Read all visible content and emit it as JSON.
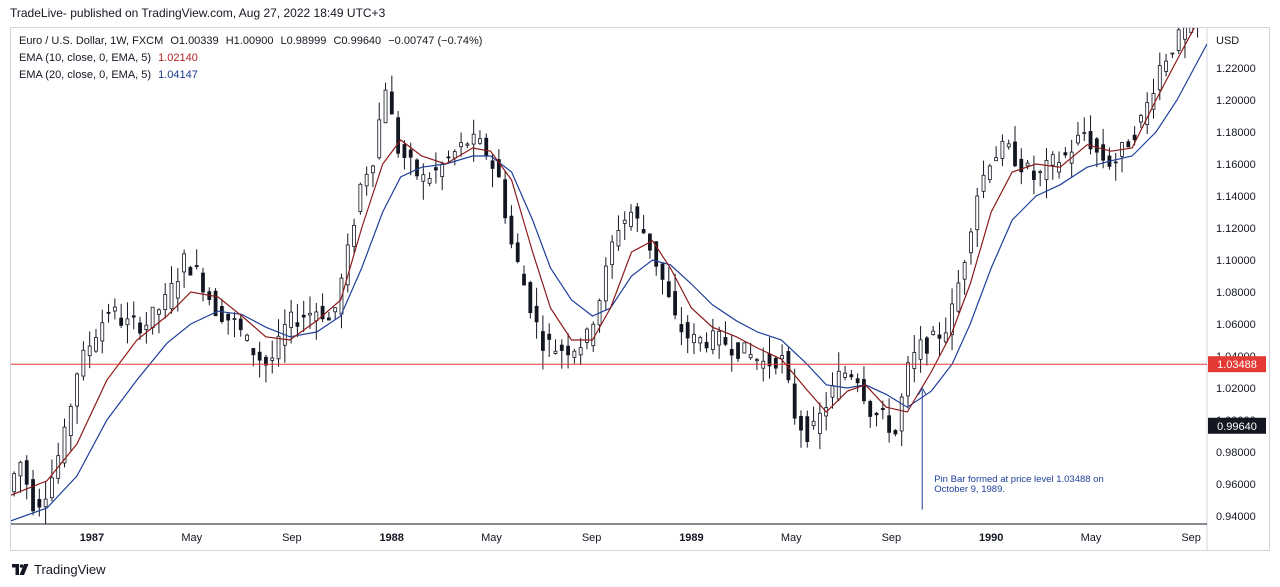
{
  "header": {
    "publish_line": "TradeLive- published on TradingView.com, Aug 27, 2022 18:49 UTC+3"
  },
  "legend": {
    "symbol": "Euro / U.S. Dollar, 1W, FXCM",
    "open_label": "O",
    "open": "1.00339",
    "high_label": "H",
    "high": "1.00900",
    "low_label": "L",
    "low": "0.98999",
    "close_label": "C",
    "close": "0.99640",
    "change": "−0.00747 (−0.74%)",
    "ema10_label": "EMA (10, close, 0, EMA, 5)",
    "ema10_value": "1.02140",
    "ema20_label": "EMA (20, close, 0, EMA, 5)",
    "ema20_value": "1.04147"
  },
  "footer": {
    "brand": "TradingView"
  },
  "colors": {
    "ema10": "#8b1a1a",
    "ema20": "#1f3f9a",
    "candle": "#131722",
    "hline": "#e53935"
  },
  "chart_data": {
    "type": "candlestick",
    "currency_label": "USD",
    "y_ticks": [
      "0.94000",
      "0.96000",
      "0.98000",
      "1.00000",
      "1.02000",
      "1.04000",
      "1.06000",
      "1.08000",
      "1.10000",
      "1.12000",
      "1.14000",
      "1.16000",
      "1.18000",
      "1.20000",
      "1.22000"
    ],
    "ylim": [
      0.935,
      1.245
    ],
    "x_ticks": [
      {
        "label": "1987",
        "t": 0.0
      },
      {
        "label": "May",
        "t": 0.333
      },
      {
        "label": "Sep",
        "t": 0.667
      },
      {
        "label": "1988",
        "t": 1.0
      },
      {
        "label": "May",
        "t": 1.333
      },
      {
        "label": "Sep",
        "t": 1.667
      },
      {
        "label": "1989",
        "t": 2.0
      },
      {
        "label": "May",
        "t": 2.333
      },
      {
        "label": "Sep",
        "t": 2.667
      },
      {
        "label": "1990",
        "t": 3.0
      },
      {
        "label": "May",
        "t": 3.333
      },
      {
        "label": "Sep",
        "t": 3.667
      },
      {
        "label": "1991",
        "t": 4.0
      }
    ],
    "xlim": [
      -0.27,
      3.72
    ],
    "horizontal_level": {
      "value": 1.03488,
      "label": "1.03488"
    },
    "last_price": {
      "value": 0.9964,
      "label": "0.99640"
    },
    "annotation": {
      "text_line1": "Pin Bar formed at price level 1.03488 on",
      "text_line2": "October 9, 1989.",
      "arrow_t": 2.77,
      "arrow_from": 0.944,
      "arrow_to": 1.02
    },
    "price_path": [
      [
        -0.27,
        0.95
      ],
      [
        -0.22,
        0.975
      ],
      [
        -0.17,
        0.945
      ],
      [
        -0.12,
        0.96
      ],
      [
        -0.07,
        0.99
      ],
      [
        -0.03,
        1.03
      ],
      [
        0.02,
        1.05
      ],
      [
        0.08,
        1.07
      ],
      [
        0.13,
        1.06
      ],
      [
        0.2,
        1.06
      ],
      [
        0.27,
        1.075
      ],
      [
        0.33,
        1.1
      ],
      [
        0.38,
        1.09
      ],
      [
        0.43,
        1.07
      ],
      [
        0.5,
        1.06
      ],
      [
        0.55,
        1.045
      ],
      [
        0.6,
        1.035
      ],
      [
        0.63,
        1.04
      ],
      [
        0.67,
        1.06
      ],
      [
        0.72,
        1.065
      ],
      [
        0.78,
        1.07
      ],
      [
        0.82,
        1.06
      ],
      [
        0.87,
        1.1
      ],
      [
        0.92,
        1.15
      ],
      [
        0.96,
        1.165
      ],
      [
        1.0,
        1.21
      ],
      [
        1.04,
        1.17
      ],
      [
        1.08,
        1.16
      ],
      [
        1.12,
        1.15
      ],
      [
        1.17,
        1.155
      ],
      [
        1.22,
        1.165
      ],
      [
        1.28,
        1.175
      ],
      [
        1.33,
        1.17
      ],
      [
        1.38,
        1.15
      ],
      [
        1.42,
        1.11
      ],
      [
        1.47,
        1.08
      ],
      [
        1.52,
        1.05
      ],
      [
        1.57,
        1.045
      ],
      [
        1.62,
        1.045
      ],
      [
        1.67,
        1.05
      ],
      [
        1.72,
        1.08
      ],
      [
        1.77,
        1.12
      ],
      [
        1.82,
        1.13
      ],
      [
        1.87,
        1.115
      ],
      [
        1.92,
        1.09
      ],
      [
        1.97,
        1.06
      ],
      [
        2.02,
        1.05
      ],
      [
        2.07,
        1.05
      ],
      [
        2.12,
        1.05
      ],
      [
        2.17,
        1.045
      ],
      [
        2.22,
        1.04
      ],
      [
        2.27,
        1.035
      ],
      [
        2.32,
        1.04
      ],
      [
        2.37,
        1.0
      ],
      [
        2.42,
        0.99
      ],
      [
        2.47,
        1.01
      ],
      [
        2.52,
        1.03
      ],
      [
        2.57,
        1.03
      ],
      [
        2.62,
        1.005
      ],
      [
        2.67,
        1.0
      ],
      [
        2.7,
        0.99
      ],
      [
        2.74,
        1.03
      ],
      [
        2.78,
        1.045
      ],
      [
        2.83,
        1.05
      ],
      [
        2.88,
        1.06
      ],
      [
        2.93,
        1.1
      ],
      [
        2.97,
        1.14
      ],
      [
        3.02,
        1.165
      ],
      [
        3.07,
        1.17
      ],
      [
        3.12,
        1.16
      ],
      [
        3.17,
        1.15
      ],
      [
        3.22,
        1.16
      ],
      [
        3.27,
        1.165
      ],
      [
        3.33,
        1.18
      ],
      [
        3.38,
        1.165
      ],
      [
        3.43,
        1.16
      ],
      [
        3.48,
        1.175
      ],
      [
        3.53,
        1.19
      ],
      [
        3.58,
        1.22
      ],
      [
        3.63,
        1.235
      ],
      [
        3.68,
        1.245
      ],
      [
        3.72,
        1.255
      ]
    ],
    "ema10_path": [
      [
        -0.27,
        0.953
      ],
      [
        -0.15,
        0.962
      ],
      [
        -0.05,
        0.985
      ],
      [
        0.05,
        1.025
      ],
      [
        0.15,
        1.05
      ],
      [
        0.25,
        1.065
      ],
      [
        0.33,
        1.08
      ],
      [
        0.42,
        1.077
      ],
      [
        0.5,
        1.065
      ],
      [
        0.58,
        1.052
      ],
      [
        0.66,
        1.05
      ],
      [
        0.75,
        1.062
      ],
      [
        0.83,
        1.075
      ],
      [
        0.9,
        1.12
      ],
      [
        0.97,
        1.16
      ],
      [
        1.03,
        1.175
      ],
      [
        1.1,
        1.165
      ],
      [
        1.18,
        1.16
      ],
      [
        1.27,
        1.17
      ],
      [
        1.33,
        1.168
      ],
      [
        1.4,
        1.15
      ],
      [
        1.47,
        1.105
      ],
      [
        1.53,
        1.07
      ],
      [
        1.6,
        1.05
      ],
      [
        1.67,
        1.05
      ],
      [
        1.73,
        1.07
      ],
      [
        1.8,
        1.105
      ],
      [
        1.87,
        1.112
      ],
      [
        1.93,
        1.095
      ],
      [
        2.0,
        1.07
      ],
      [
        2.07,
        1.058
      ],
      [
        2.15,
        1.052
      ],
      [
        2.22,
        1.045
      ],
      [
        2.3,
        1.038
      ],
      [
        2.38,
        1.02
      ],
      [
        2.45,
        1.005
      ],
      [
        2.52,
        1.018
      ],
      [
        2.58,
        1.022
      ],
      [
        2.65,
        1.008
      ],
      [
        2.72,
        1.005
      ],
      [
        2.8,
        1.03
      ],
      [
        2.87,
        1.055
      ],
      [
        2.93,
        1.085
      ],
      [
        3.0,
        1.13
      ],
      [
        3.07,
        1.155
      ],
      [
        3.15,
        1.16
      ],
      [
        3.23,
        1.158
      ],
      [
        3.32,
        1.172
      ],
      [
        3.4,
        1.168
      ],
      [
        3.47,
        1.17
      ],
      [
        3.55,
        1.2
      ],
      [
        3.62,
        1.225
      ],
      [
        3.72,
        1.26
      ]
    ],
    "ema20_path": [
      [
        -0.27,
        0.937
      ],
      [
        -0.15,
        0.945
      ],
      [
        -0.05,
        0.965
      ],
      [
        0.05,
        1.0
      ],
      [
        0.15,
        1.025
      ],
      [
        0.25,
        1.048
      ],
      [
        0.33,
        1.06
      ],
      [
        0.42,
        1.068
      ],
      [
        0.5,
        1.066
      ],
      [
        0.58,
        1.058
      ],
      [
        0.66,
        1.052
      ],
      [
        0.75,
        1.055
      ],
      [
        0.83,
        1.065
      ],
      [
        0.9,
        1.095
      ],
      [
        0.97,
        1.13
      ],
      [
        1.03,
        1.152
      ],
      [
        1.1,
        1.158
      ],
      [
        1.18,
        1.16
      ],
      [
        1.27,
        1.165
      ],
      [
        1.33,
        1.165
      ],
      [
        1.4,
        1.155
      ],
      [
        1.47,
        1.125
      ],
      [
        1.53,
        1.095
      ],
      [
        1.6,
        1.075
      ],
      [
        1.67,
        1.065
      ],
      [
        1.73,
        1.07
      ],
      [
        1.8,
        1.09
      ],
      [
        1.87,
        1.1
      ],
      [
        1.93,
        1.097
      ],
      [
        2.0,
        1.085
      ],
      [
        2.07,
        1.072
      ],
      [
        2.15,
        1.062
      ],
      [
        2.22,
        1.055
      ],
      [
        2.3,
        1.05
      ],
      [
        2.38,
        1.036
      ],
      [
        2.45,
        1.022
      ],
      [
        2.52,
        1.02
      ],
      [
        2.58,
        1.022
      ],
      [
        2.65,
        1.016
      ],
      [
        2.72,
        1.008
      ],
      [
        2.8,
        1.018
      ],
      [
        2.87,
        1.035
      ],
      [
        2.93,
        1.06
      ],
      [
        3.0,
        1.095
      ],
      [
        3.07,
        1.125
      ],
      [
        3.15,
        1.14
      ],
      [
        3.23,
        1.147
      ],
      [
        3.32,
        1.158
      ],
      [
        3.4,
        1.162
      ],
      [
        3.47,
        1.165
      ],
      [
        3.55,
        1.18
      ],
      [
        3.62,
        1.2
      ],
      [
        3.72,
        1.235
      ]
    ],
    "candle_count": 190
  }
}
